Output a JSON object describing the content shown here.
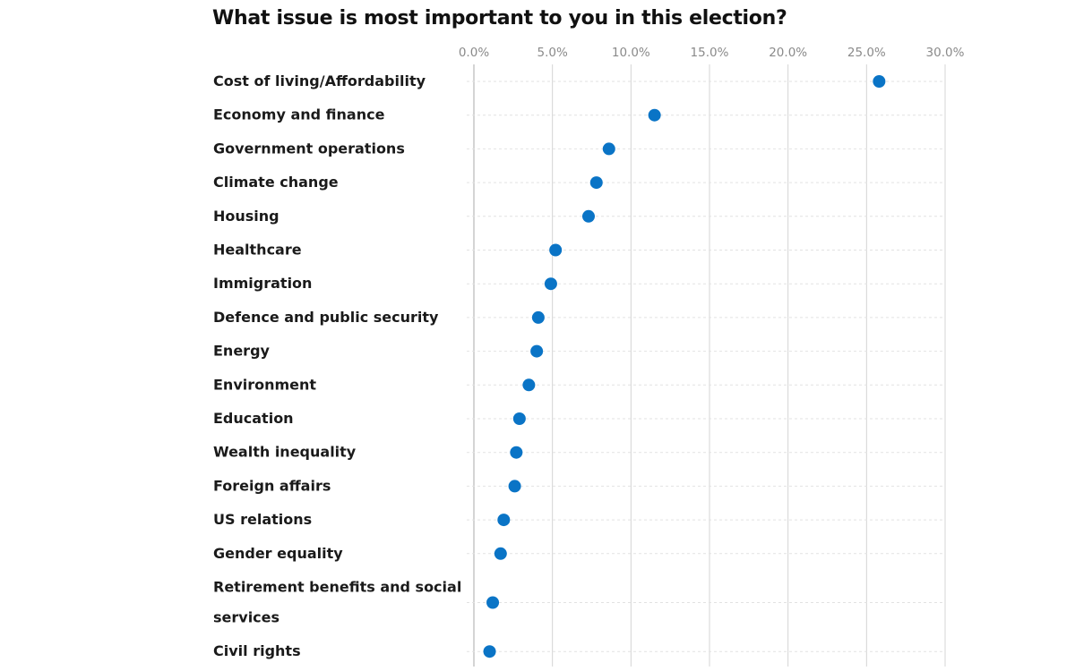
{
  "chart_data": {
    "type": "scatter",
    "title": "What issue is most important to you in this election?",
    "xlabel": "",
    "ylabel": "",
    "xlim": [
      0,
      30
    ],
    "x_ticks": [
      "0.0%",
      "5.0%",
      "10.0%",
      "15.0%",
      "20.0%",
      "25.0%",
      "30.0%"
    ],
    "x_tick_values": [
      0,
      5,
      10,
      15,
      20,
      25,
      30
    ],
    "grid": true,
    "point_color": "#0a74c6",
    "categories": [
      "Cost of living/Affordability",
      "Economy and finance",
      "Government operations",
      "Climate change",
      "Housing",
      "Healthcare",
      "Immigration",
      "Defence and public security",
      "Energy",
      "Environment",
      "Education",
      "Wealth inequality",
      "Foreign affairs",
      "US relations",
      "Gender equality",
      "Retirement benefits and social services",
      "Civil rights"
    ],
    "values": [
      25.8,
      11.5,
      8.6,
      7.8,
      7.3,
      5.2,
      4.9,
      4.1,
      4.0,
      3.5,
      2.9,
      2.7,
      2.6,
      1.9,
      1.7,
      1.2,
      1.0
    ]
  }
}
